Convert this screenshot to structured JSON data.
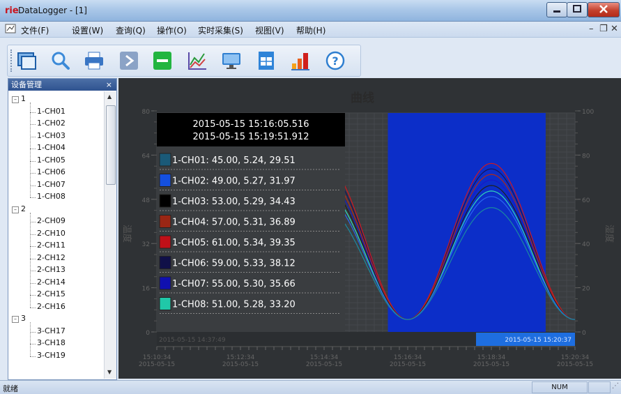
{
  "window": {
    "logo": "rie",
    "title": "DataLogger - [1]"
  },
  "menu": {
    "items": [
      "文件(F)",
      "设置(W)",
      "查询(Q)",
      "操作(O)",
      "实时采集(S)",
      "视图(V)",
      "帮助(H)"
    ]
  },
  "mdi_controls": {
    "minimize": "–",
    "restore": "❐",
    "close": "✕"
  },
  "toolbar": {
    "buttons": [
      "window-icon",
      "search-icon",
      "print-icon",
      "play-icon",
      "stop-icon",
      "chart-icon",
      "monitor-icon",
      "table-icon",
      "bar-chart-icon",
      "help-icon"
    ]
  },
  "panel": {
    "title": "设备管理",
    "close": "×",
    "groups": [
      {
        "label": "1",
        "channels": [
          "1-CH01",
          "1-CH02",
          "1-CH03",
          "1-CH04",
          "1-CH05",
          "1-CH06",
          "1-CH07",
          "1-CH08"
        ]
      },
      {
        "label": "2",
        "channels": [
          "2-CH09",
          "2-CH10",
          "2-CH11",
          "2-CH12",
          "2-CH13",
          "2-CH14",
          "2-CH15",
          "2-CH16"
        ]
      },
      {
        "label": "3",
        "channels": [
          "3-CH17",
          "3-CH18",
          "3-CH19"
        ]
      }
    ]
  },
  "chart": {
    "title": "曲线",
    "left_label": "温度",
    "right_label": "湿度",
    "tooltip": {
      "time_start": "2015-05-15 15:16:05.516",
      "time_end": "2015-05-15 15:19:51.912",
      "rows": [
        {
          "text": "1-CH01: 45.00, 5.24, 29.51",
          "color": "#1a5a78"
        },
        {
          "text": "1-CH02: 49.00, 5.27, 31.97",
          "color": "#1450e0"
        },
        {
          "text": "1-CH03: 53.00, 5.29, 34.43",
          "color": "#000000"
        },
        {
          "text": "1-CH04: 57.00, 5.31, 36.89",
          "color": "#9a2614"
        },
        {
          "text": "1-CH05: 61.00, 5.34, 39.35",
          "color": "#c01018"
        },
        {
          "text": "1-CH06: 59.00, 5.33, 38.12",
          "color": "#101048"
        },
        {
          "text": "1-CH07: 55.00, 5.30, 35.66",
          "color": "#1010b0"
        },
        {
          "text": "1-CH08: 51.00, 5.28, 33.20",
          "color": "#20c8a8"
        }
      ]
    },
    "range_left_label": "2015-05-15 14:37:49",
    "range_right_label": "2015-05-15 15:20:37",
    "time_ticks": [
      {
        "time": "15:10:34",
        "date": "2015-05-15"
      },
      {
        "time": "15:12:34",
        "date": "2015-05-15"
      },
      {
        "time": "15:14:34",
        "date": "2015-05-15"
      },
      {
        "time": "15:16:34",
        "date": "2015-05-15"
      },
      {
        "time": "15:18:34",
        "date": "2015-05-15"
      },
      {
        "time": "15:20:34",
        "date": "2015-05-15"
      }
    ]
  },
  "chart_data": {
    "type": "line",
    "title": "曲线",
    "xlabel": "",
    "ylabel": "温度",
    "y2label": "湿度",
    "ylim": [
      0,
      80
    ],
    "y2lim": [
      0,
      100
    ],
    "yticks": [
      0,
      16,
      32,
      48,
      64,
      80
    ],
    "y2ticks": [
      0,
      20,
      40,
      60,
      80,
      100
    ],
    "x_ticks": [
      "15:10:34",
      "15:12:34",
      "15:14:34",
      "15:16:34",
      "15:18:34",
      "15:20:34"
    ],
    "highlight_range": [
      "15:16:05.516",
      "15:19:51.912"
    ],
    "series": [
      {
        "name": "1-CH01",
        "color": "#1a8aa0",
        "peak": 45.0
      },
      {
        "name": "1-CH02",
        "color": "#2a68f0",
        "peak": 49.0
      },
      {
        "name": "1-CH03",
        "color": "#202020",
        "peak": 53.0
      },
      {
        "name": "1-CH04",
        "color": "#b02a18",
        "peak": 57.0
      },
      {
        "name": "1-CH05",
        "color": "#d01820",
        "peak": 61.0
      },
      {
        "name": "1-CH06",
        "color": "#15155a",
        "peak": 59.0
      },
      {
        "name": "1-CH07",
        "color": "#1818c8",
        "peak": 55.0
      },
      {
        "name": "1-CH08",
        "color": "#30d8b8",
        "peak": 51.0
      }
    ],
    "grid": true
  },
  "status": {
    "text": "就绪",
    "num": "NUM",
    "grip": "⋰"
  }
}
